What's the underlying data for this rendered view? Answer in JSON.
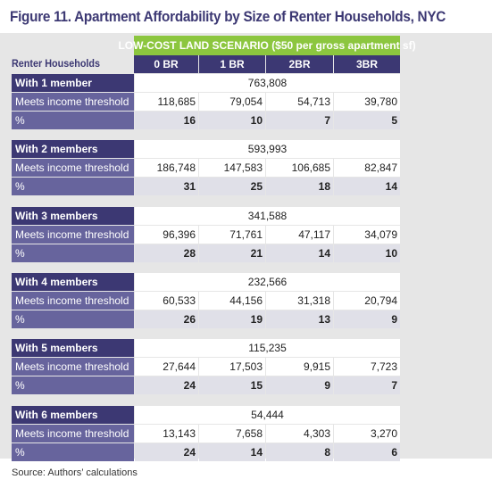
{
  "title": "Figure 11. Apartment Affordability by Size of Renter Households, NYC",
  "scenario": "LOW-COST LAND SCENARIO ($50 per gross apartment sf)",
  "row_header": "Renter Households",
  "columns": [
    "0 BR",
    "1 BR",
    "2BR",
    "3BR"
  ],
  "meets_label": "Meets income threshold",
  "pct_label": "%",
  "groups": [
    {
      "label": "With 1 member",
      "total": "763,808",
      "meets": [
        "118,685",
        "79,054",
        "54,713",
        "39,780"
      ],
      "pct": [
        "16",
        "10",
        "7",
        "5"
      ]
    },
    {
      "label": "With 2 members",
      "total": "593,993",
      "meets": [
        "186,748",
        "147,583",
        "106,685",
        "82,847"
      ],
      "pct": [
        "31",
        "25",
        "18",
        "14"
      ]
    },
    {
      "label": "With 3 members",
      "total": "341,588",
      "meets": [
        "96,396",
        "71,761",
        "47,117",
        "34,079"
      ],
      "pct": [
        "28",
        "21",
        "14",
        "10"
      ]
    },
    {
      "label": "With 4 members",
      "total": "232,566",
      "meets": [
        "60,533",
        "44,156",
        "31,318",
        "20,794"
      ],
      "pct": [
        "26",
        "19",
        "13",
        "9"
      ]
    },
    {
      "label": "With 5 members",
      "total": "115,235",
      "meets": [
        "27,644",
        "17,503",
        "9,915",
        "7,723"
      ],
      "pct": [
        "24",
        "15",
        "9",
        "7"
      ]
    },
    {
      "label": "With 6 members",
      "total": "54,444",
      "meets": [
        "13,143",
        "7,658",
        "4,303",
        "3,270"
      ],
      "pct": [
        "24",
        "14",
        "8",
        "6"
      ]
    }
  ],
  "source": "Source: Authors’ calculations"
}
